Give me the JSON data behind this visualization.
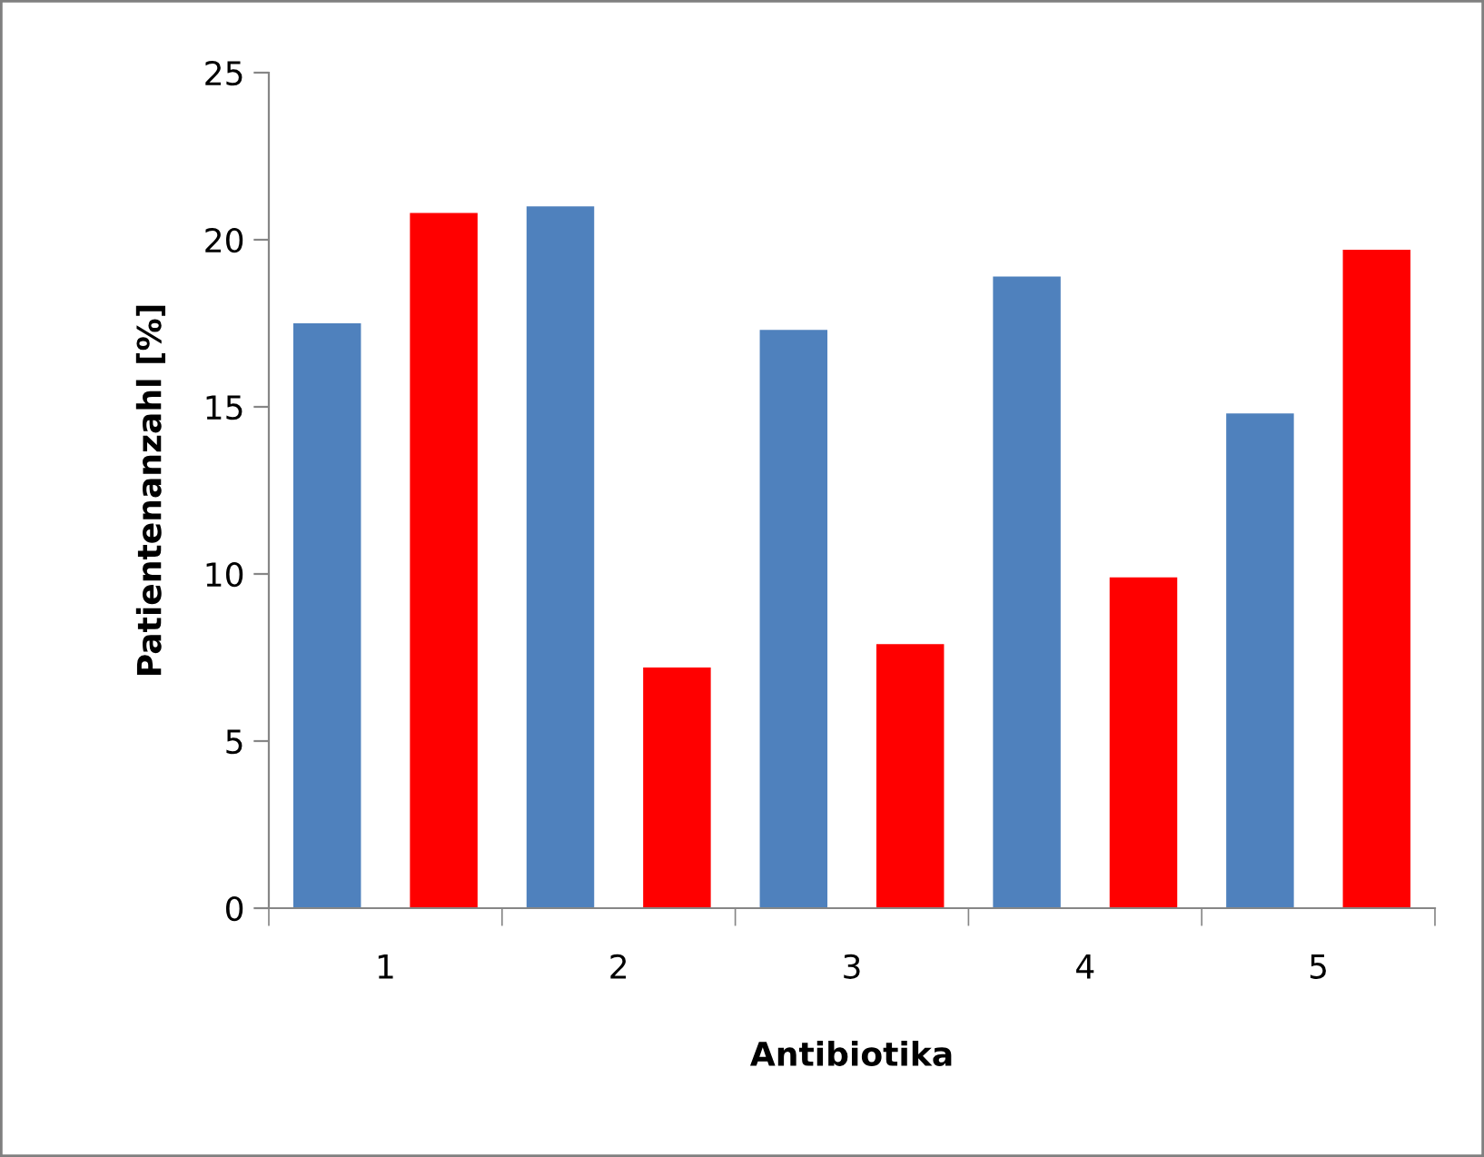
{
  "chart_data": {
    "type": "bar",
    "xlabel": "Antibiotika",
    "ylabel": "Patientenanzahl [%]",
    "categories": [
      "1",
      "2",
      "3",
      "4",
      "5"
    ],
    "series": [
      {
        "color": "#4f81bd",
        "values": [
          17.5,
          21.0,
          17.3,
          18.9,
          14.8
        ]
      },
      {
        "color": "#ff0000",
        "values": [
          20.8,
          7.2,
          7.9,
          9.9,
          19.7
        ]
      }
    ],
    "ylim": [
      0,
      25
    ],
    "yticks": [
      0,
      5,
      10,
      15,
      20,
      25
    ],
    "grid": false
  }
}
